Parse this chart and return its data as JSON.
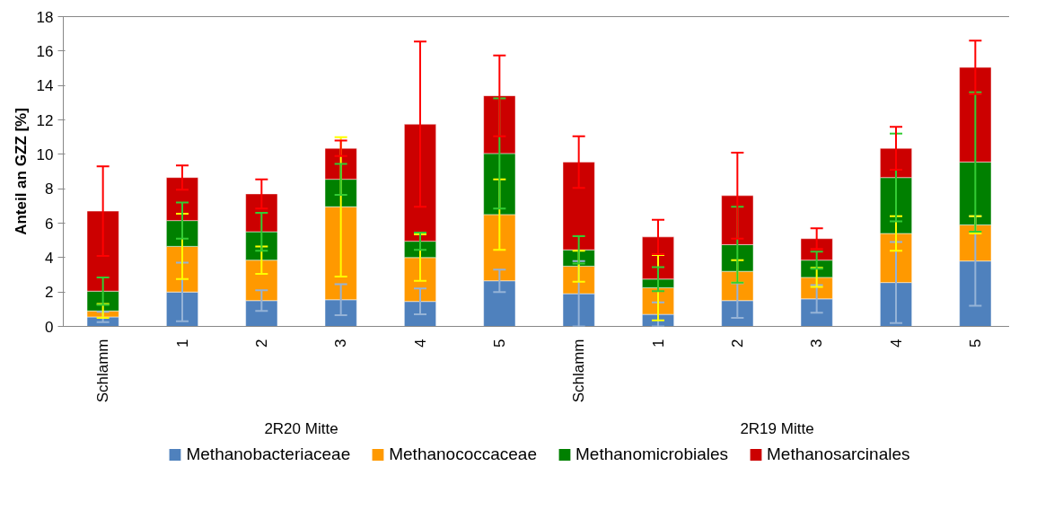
{
  "chart_data": {
    "type": "bar",
    "stacked": true,
    "ylabel": "Anteil an GZZ [%]",
    "categories": [
      "Schlamm",
      "1",
      "2",
      "3",
      "4",
      "5",
      "Schlamm",
      "1",
      "2",
      "3",
      "4",
      "5"
    ],
    "annotations": [
      "2R20 Mitte",
      "2R19 Mitte"
    ],
    "ylim": [
      0,
      18
    ],
    "yticks": [
      0,
      2,
      4,
      6,
      8,
      10,
      12,
      14,
      16,
      18
    ],
    "grid": false,
    "legend": "bottom",
    "series": [
      {
        "name": "Methanobacteriaceae",
        "color": "#4f81bd",
        "values": [
          0.55,
          2.0,
          1.5,
          1.55,
          1.45,
          2.65,
          1.9,
          0.7,
          1.5,
          1.6,
          2.55,
          3.8
        ],
        "errors": [
          0.3,
          1.7,
          0.6,
          0.9,
          0.75,
          0.65,
          1.9,
          0.7,
          1.0,
          0.8,
          2.35,
          2.6
        ]
      },
      {
        "name": "Methanococcaceae",
        "color": "#ff9900",
        "values": [
          0.35,
          2.65,
          2.35,
          5.4,
          2.55,
          3.85,
          1.6,
          1.55,
          1.7,
          1.25,
          2.85,
          2.1
        ],
        "errors": [
          0.4,
          1.9,
          0.8,
          4.05,
          1.35,
          2.05,
          0.9,
          1.9,
          0.65,
          0.55,
          1.0,
          0.5
        ]
      },
      {
        "name": "Methanomicrobiales",
        "color": "#008000",
        "values": [
          1.15,
          1.5,
          1.65,
          1.6,
          0.95,
          3.55,
          0.95,
          0.5,
          1.55,
          1.0,
          3.25,
          3.65
        ],
        "errors": [
          0.8,
          1.05,
          1.1,
          0.9,
          0.5,
          3.2,
          0.8,
          0.7,
          2.2,
          0.5,
          2.55,
          4.05
        ]
      },
      {
        "name": "Methanosarcinales",
        "color": "#cc0000",
        "values": [
          4.65,
          2.5,
          2.2,
          1.8,
          6.8,
          3.35,
          5.1,
          2.45,
          2.85,
          1.25,
          1.7,
          5.5
        ],
        "errors": [
          2.6,
          0.7,
          0.85,
          0.45,
          4.8,
          2.35,
          1.5,
          1.0,
          2.5,
          0.6,
          1.25,
          1.55
        ]
      }
    ]
  }
}
